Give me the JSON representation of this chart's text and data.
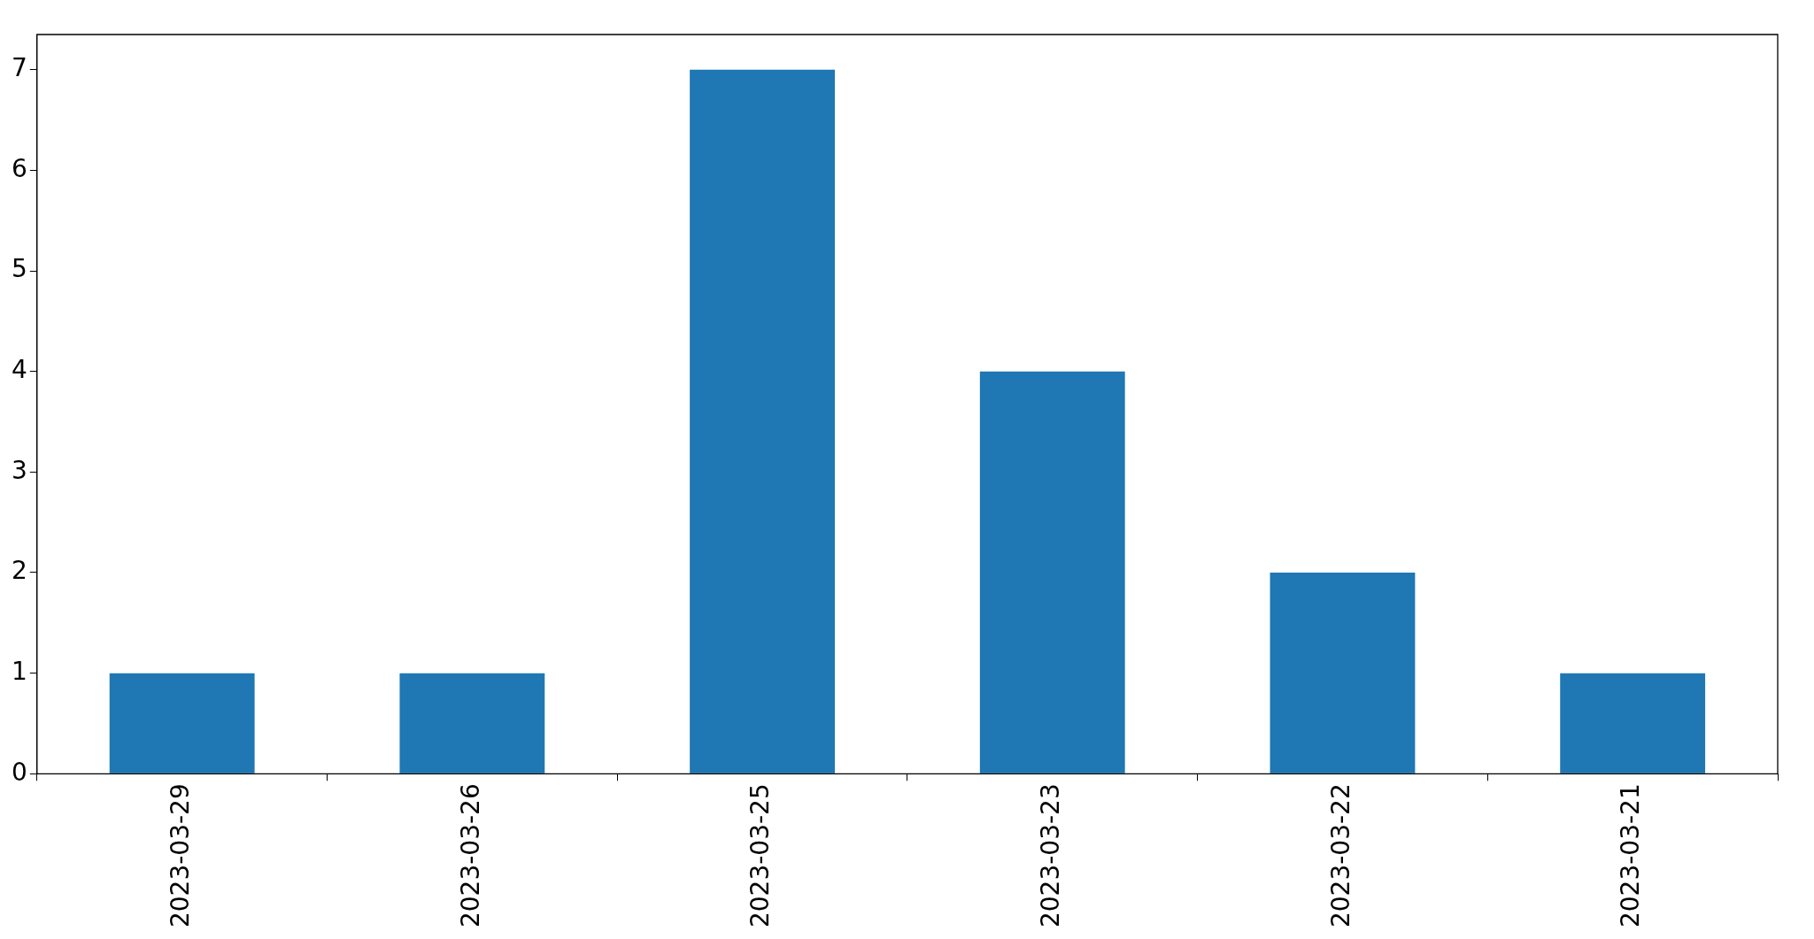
{
  "chart_data": {
    "type": "bar",
    "categories": [
      "2023-03-29",
      "2023-03-26",
      "2023-03-25",
      "2023-03-23",
      "2023-03-22",
      "2023-03-21"
    ],
    "values": [
      1,
      1,
      7,
      4,
      2,
      1
    ],
    "color": "#1f77b4",
    "ylim": [
      0,
      7.35
    ],
    "yticks": [
      0,
      1,
      2,
      3,
      4,
      5,
      6,
      7
    ],
    "grid": false,
    "legend": false
  }
}
